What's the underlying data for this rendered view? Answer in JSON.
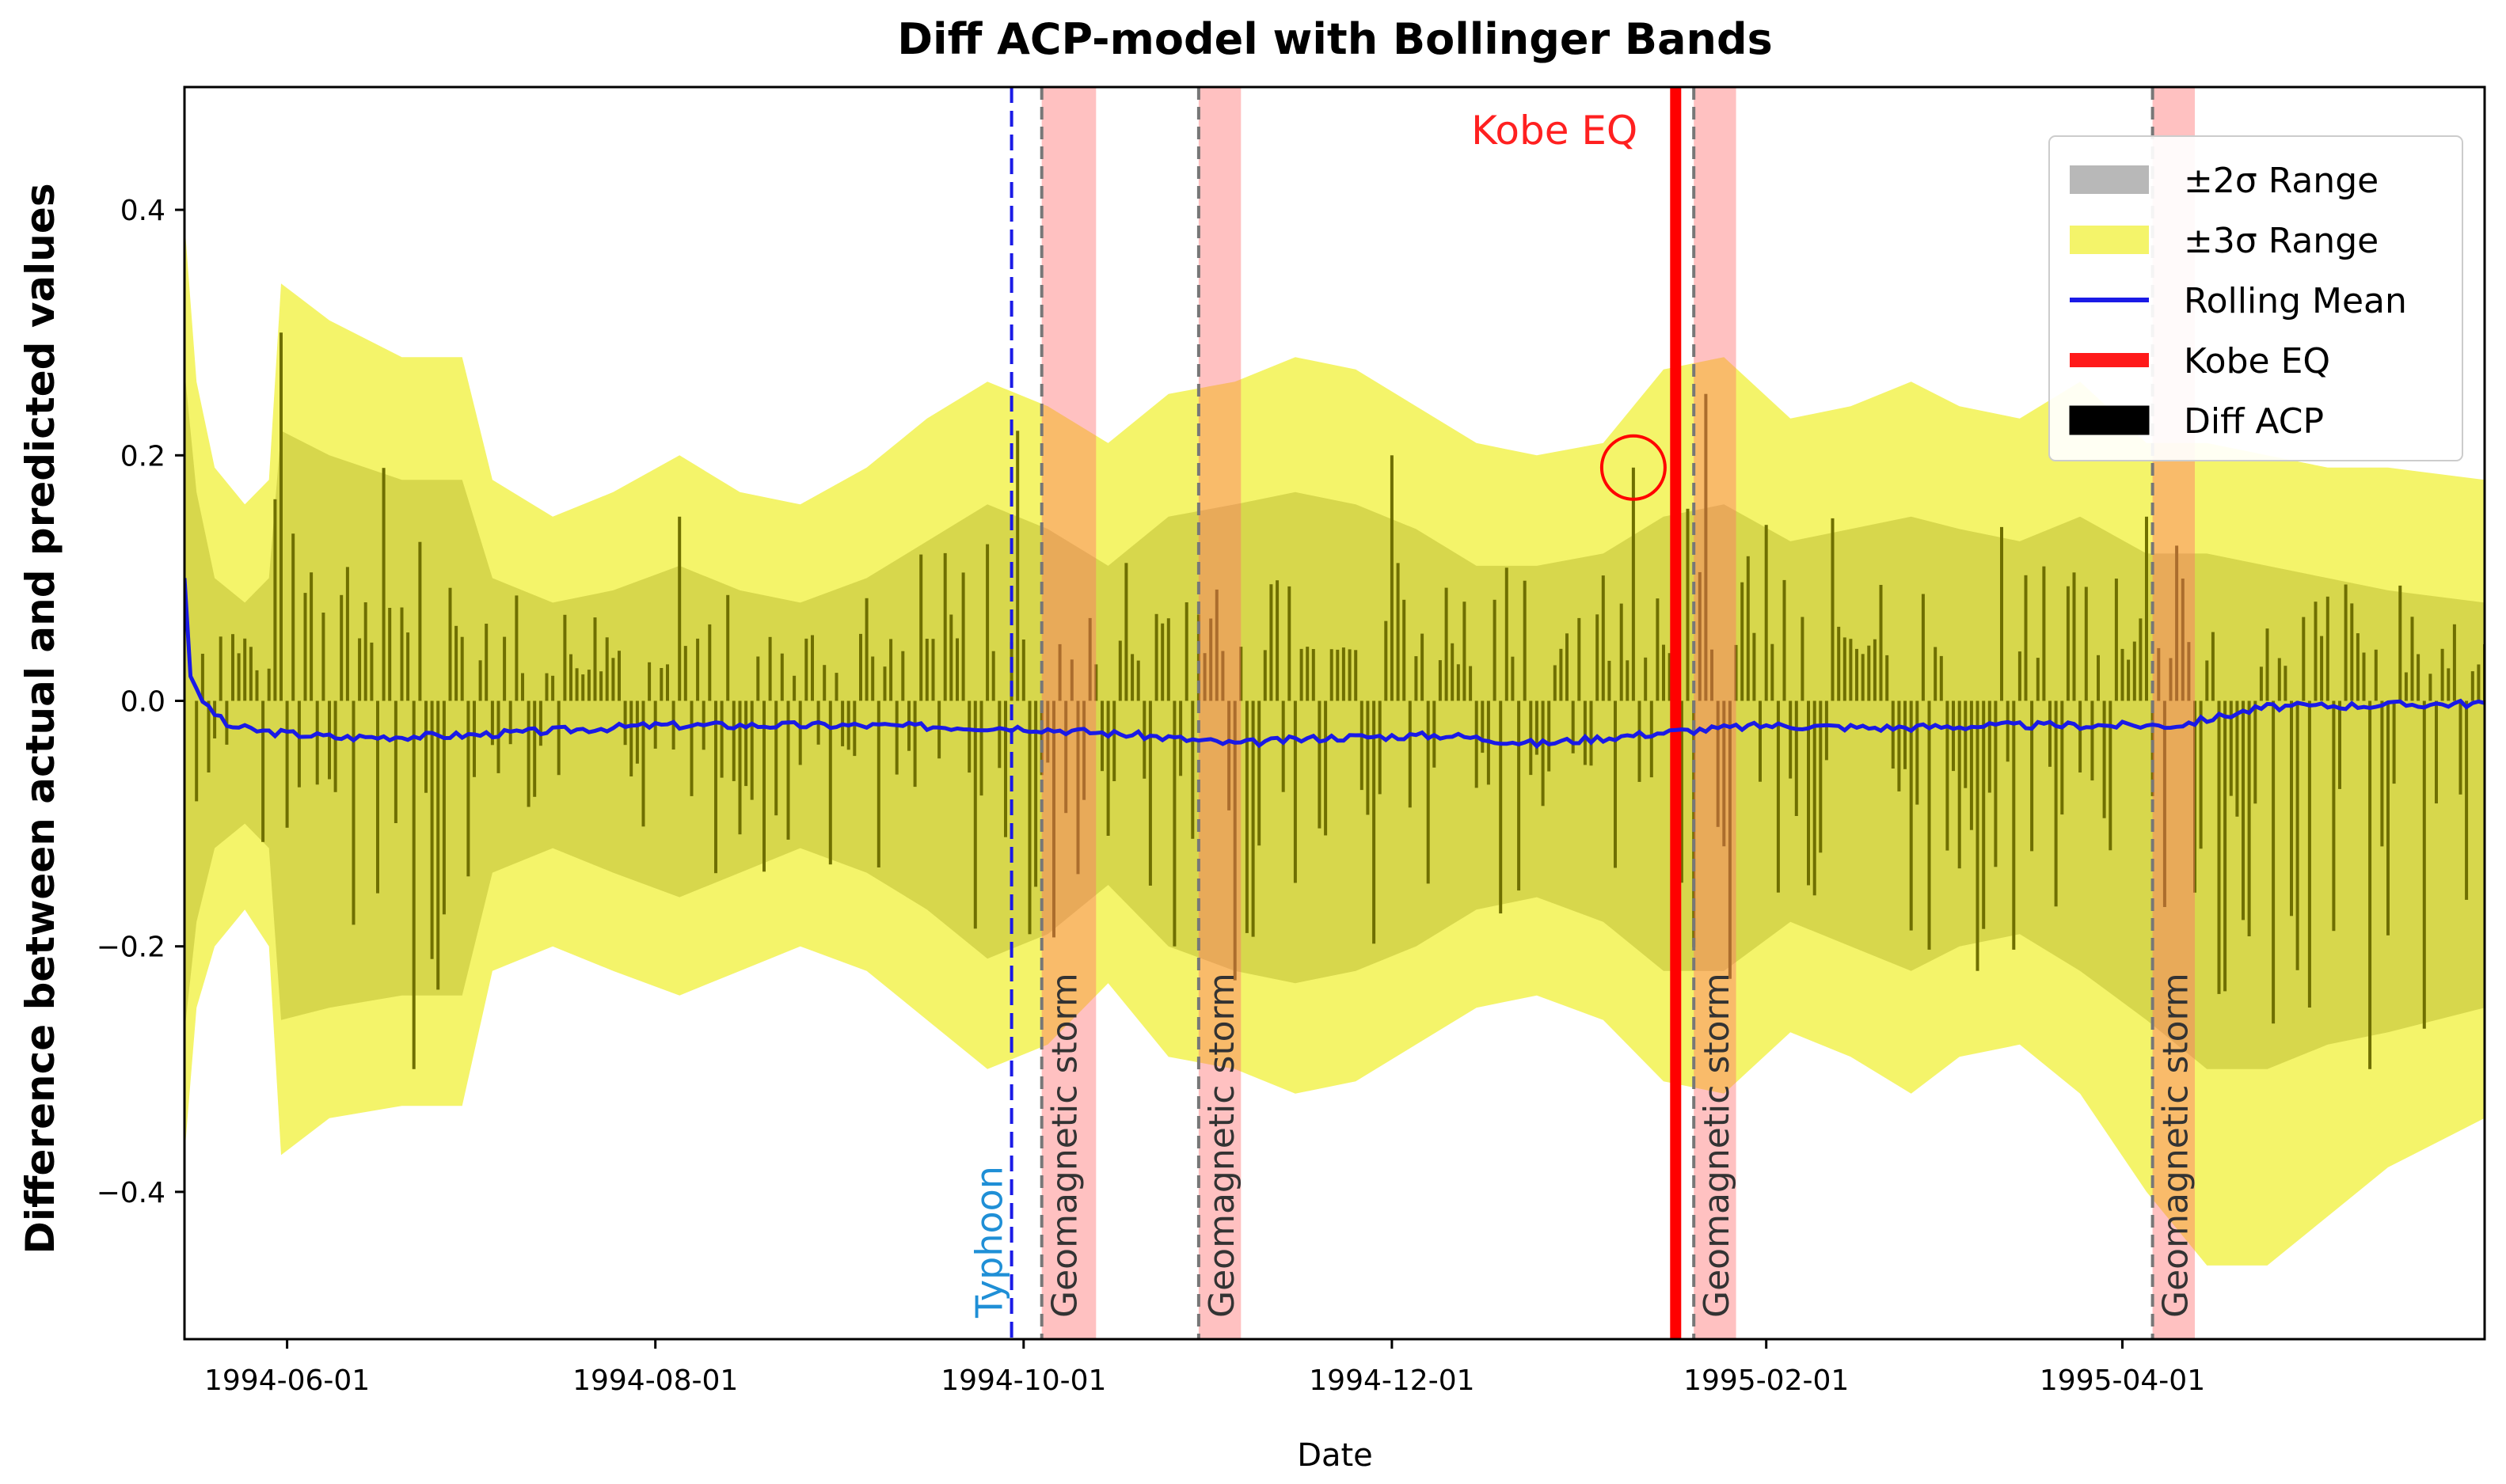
{
  "chart_data": {
    "type": "line",
    "title": "Diff ACP-model with Bollinger Bands",
    "xlabel": "Date",
    "ylabel": "Difference between actual and predicted values",
    "x_range": [
      "1994-05-15",
      "1995-05-31"
    ],
    "ylim": [
      -0.52,
      0.5
    ],
    "yticks": [
      0.4,
      0.2,
      0.0,
      -0.2,
      -0.4
    ],
    "ytick_labels": [
      "0.4",
      "0.2",
      "0.0",
      "−0.2",
      "−0.4"
    ],
    "xticks": [
      "1994-06-01",
      "1994-08-01",
      "1994-10-01",
      "1994-12-01",
      "1995-02-01",
      "1995-04-01"
    ],
    "xtick_labels": [
      "1994-06-01",
      "1994-08-01",
      "1994-10-01",
      "1994-12-01",
      "1995-02-01",
      "1995-04-01"
    ],
    "legend_position": "top-right",
    "legend": [
      {
        "label": "±2σ Range",
        "kind": "patch",
        "color": "#b8b8b8"
      },
      {
        "label": "±3σ Range",
        "kind": "patch",
        "color": "#f4f46a"
      },
      {
        "label": "Rolling Mean",
        "kind": "line",
        "color": "#1a1ae6"
      },
      {
        "label": "Kobe EQ",
        "kind": "line",
        "color": "#ff1a1a"
      },
      {
        "label": "Diff ACP",
        "kind": "patch",
        "color": "#000000"
      }
    ],
    "band_dates": [
      "1994-05-15",
      "1994-05-17",
      "1994-05-20",
      "1994-05-25",
      "1994-05-29",
      "1994-05-31",
      "1994-06-08",
      "1994-06-20",
      "1994-06-30",
      "1994-07-05",
      "1994-07-15",
      "1994-07-25",
      "1994-08-05",
      "1994-08-15",
      "1994-08-25",
      "1994-09-05",
      "1994-09-15",
      "1994-09-25",
      "1994-10-05",
      "1994-10-15",
      "1994-10-25",
      "1994-11-05",
      "1994-11-15",
      "1994-11-25",
      "1994-12-05",
      "1994-12-15",
      "1994-12-25",
      "1995-01-05",
      "1995-01-15",
      "1995-01-25",
      "1995-02-05",
      "1995-02-15",
      "1995-02-25",
      "1995-03-05",
      "1995-03-15",
      "1995-03-25",
      "1995-04-05",
      "1995-04-15",
      "1995-04-25",
      "1995-05-05",
      "1995-05-15",
      "1995-05-31"
    ],
    "upper3": [
      0.39,
      0.26,
      0.19,
      0.16,
      0.18,
      0.34,
      0.31,
      0.28,
      0.28,
      0.18,
      0.15,
      0.17,
      0.2,
      0.17,
      0.16,
      0.19,
      0.23,
      0.26,
      0.24,
      0.21,
      0.25,
      0.26,
      0.28,
      0.27,
      0.24,
      0.21,
      0.2,
      0.21,
      0.27,
      0.28,
      0.23,
      0.24,
      0.26,
      0.24,
      0.23,
      0.26,
      0.21,
      0.21,
      0.2,
      0.19,
      0.19,
      0.18
    ],
    "upper2": [
      0.27,
      0.17,
      0.1,
      0.08,
      0.1,
      0.22,
      0.2,
      0.18,
      0.18,
      0.1,
      0.08,
      0.09,
      0.11,
      0.09,
      0.08,
      0.1,
      0.13,
      0.16,
      0.14,
      0.11,
      0.15,
      0.16,
      0.17,
      0.16,
      0.14,
      0.11,
      0.11,
      0.12,
      0.15,
      0.16,
      0.13,
      0.14,
      0.15,
      0.14,
      0.13,
      0.15,
      0.12,
      0.12,
      0.11,
      0.1,
      0.09,
      0.08
    ],
    "lower2": [
      -0.27,
      -0.18,
      -0.12,
      -0.1,
      -0.12,
      -0.26,
      -0.25,
      -0.24,
      -0.24,
      -0.14,
      -0.12,
      -0.14,
      -0.16,
      -0.14,
      -0.12,
      -0.14,
      -0.17,
      -0.21,
      -0.19,
      -0.15,
      -0.2,
      -0.22,
      -0.23,
      -0.22,
      -0.2,
      -0.17,
      -0.16,
      -0.18,
      -0.22,
      -0.22,
      -0.18,
      -0.2,
      -0.22,
      -0.2,
      -0.19,
      -0.22,
      -0.26,
      -0.3,
      -0.3,
      -0.28,
      -0.27,
      -0.25
    ],
    "lower3": [
      -0.37,
      -0.25,
      -0.2,
      -0.17,
      -0.2,
      -0.37,
      -0.34,
      -0.33,
      -0.33,
      -0.22,
      -0.2,
      -0.22,
      -0.24,
      -0.22,
      -0.2,
      -0.22,
      -0.26,
      -0.3,
      -0.28,
      -0.23,
      -0.29,
      -0.3,
      -0.32,
      -0.31,
      -0.28,
      -0.25,
      -0.24,
      -0.26,
      -0.31,
      -0.32,
      -0.27,
      -0.29,
      -0.32,
      -0.29,
      -0.28,
      -0.32,
      -0.4,
      -0.46,
      -0.46,
      -0.42,
      -0.38,
      -0.34
    ],
    "rolling_mean_dates": [
      "1994-05-15",
      "1994-05-16",
      "1994-05-18",
      "1994-05-22",
      "1994-05-28",
      "1994-06-10",
      "1994-07-01",
      "1994-08-01",
      "1994-09-01",
      "1994-10-01",
      "1994-10-20",
      "1994-11-05",
      "1994-11-20",
      "1994-12-10",
      "1994-12-25",
      "1995-01-17",
      "1995-02-01",
      "1995-02-20",
      "1995-03-15",
      "1995-04-10",
      "1995-04-25",
      "1995-05-31"
    ],
    "rolling_mean_values": [
      0.1,
      0.02,
      0.0,
      -0.02,
      -0.025,
      -0.03,
      -0.028,
      -0.02,
      -0.02,
      -0.022,
      -0.028,
      -0.035,
      -0.03,
      -0.028,
      -0.035,
      -0.025,
      -0.02,
      -0.022,
      -0.02,
      -0.02,
      -0.005,
      -0.002
    ],
    "diff_acp_sample_dates": [
      "1994-05-31",
      "1994-06-22",
      "1994-08-05",
      "1994-09-30",
      "1994-10-26",
      "1994-12-01",
      "1995-01-10",
      "1995-01-22",
      "1995-03-08",
      "1995-04-05",
      "1995-05-12"
    ],
    "diff_acp_sample_values": [
      0.3,
      -0.3,
      0.15,
      0.22,
      -0.2,
      0.2,
      0.19,
      0.25,
      -0.22,
      0.15,
      -0.3
    ],
    "events": [
      {
        "type": "typhoon",
        "label": "Typhoon",
        "date": "1994-09-29",
        "color": "#1a1ae6"
      },
      {
        "type": "kobe",
        "label": "Kobe EQ",
        "date": "1995-01-17",
        "color": "#ff0000"
      },
      {
        "type": "storm",
        "label": "Geomagnetic storm",
        "date_start": "1994-10-04",
        "date_end": "1994-10-13"
      },
      {
        "type": "storm",
        "label": "Geomagnetic storm",
        "date_start": "1994-10-30",
        "date_end": "1994-11-06"
      },
      {
        "type": "storm",
        "label": "Geomagnetic storm",
        "date_start": "1995-01-20",
        "date_end": "1995-01-27"
      },
      {
        "type": "storm",
        "label": "Geomagnetic storm",
        "date_start": "1995-04-06",
        "date_end": "1995-04-13"
      }
    ],
    "highlight": {
      "date": "1995-01-10",
      "value": 0.19
    }
  }
}
